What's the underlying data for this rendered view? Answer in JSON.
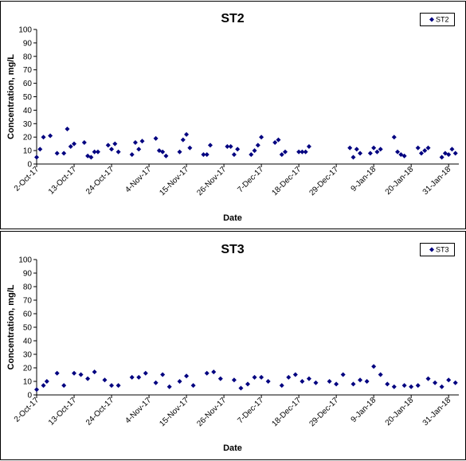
{
  "chart_data": [
    {
      "type": "scatter",
      "title": "ST2",
      "xlabel": "Date",
      "ylabel": "Concentration, mg/L",
      "ylim": [
        0,
        100
      ],
      "ytick_step": 10,
      "xlim": [
        "2017-10-02",
        "2018-02-03"
      ],
      "xticks": [
        "2-Oct-17",
        "13-Oct-17",
        "24-Oct-17",
        "4-Nov-17",
        "15-Nov-17",
        "26-Nov-17",
        "7-Dec-17",
        "18-Dec-17",
        "29-Dec-17",
        "9-Jan-18",
        "20-Jan-18",
        "31-Jan-18"
      ],
      "legend": "top-right",
      "grid": false,
      "marker_color": "#000080",
      "series": [
        {
          "name": "ST2",
          "x": [
            "2017-10-02",
            "2017-10-03",
            "2017-10-04",
            "2017-10-06",
            "2017-10-08",
            "2017-10-10",
            "2017-10-11",
            "2017-10-12",
            "2017-10-13",
            "2017-10-16",
            "2017-10-17",
            "2017-10-18",
            "2017-10-19",
            "2017-10-20",
            "2017-10-23",
            "2017-10-24",
            "2017-10-25",
            "2017-10-26",
            "2017-10-30",
            "2017-10-31",
            "2017-11-01",
            "2017-11-02",
            "2017-11-06",
            "2017-11-07",
            "2017-11-08",
            "2017-11-09",
            "2017-11-13",
            "2017-11-14",
            "2017-11-15",
            "2017-11-16",
            "2017-11-20",
            "2017-11-21",
            "2017-11-22",
            "2017-11-27",
            "2017-11-28",
            "2017-11-29",
            "2017-11-30",
            "2017-12-04",
            "2017-12-05",
            "2017-12-06",
            "2017-12-07",
            "2017-12-11",
            "2017-12-12",
            "2017-12-13",
            "2017-12-14",
            "2017-12-18",
            "2017-12-19",
            "2017-12-20",
            "2017-12-21",
            "2018-01-02",
            "2018-01-03",
            "2018-01-04",
            "2018-01-05",
            "2018-01-08",
            "2018-01-09",
            "2018-01-10",
            "2018-01-11",
            "2018-01-15",
            "2018-01-16",
            "2018-01-17",
            "2018-01-18",
            "2018-01-22",
            "2018-01-23",
            "2018-01-24",
            "2018-01-25",
            "2018-01-29",
            "2018-01-30",
            "2018-01-31",
            "2018-02-01",
            "2018-02-02"
          ],
          "y": [
            5,
            11,
            20,
            21,
            8,
            8,
            26,
            13,
            15,
            16,
            6,
            5,
            9,
            9,
            14,
            11,
            15,
            9,
            7,
            16,
            11,
            17,
            19,
            10,
            9,
            6,
            9,
            18,
            22,
            12,
            7,
            7,
            14,
            13,
            13,
            7,
            11,
            7,
            10,
            14,
            20,
            16,
            18,
            7,
            9,
            9,
            9,
            9,
            13,
            12,
            5,
            11,
            8,
            8,
            12,
            9,
            11,
            20,
            9,
            7,
            6,
            12,
            8,
            10,
            12,
            5,
            8,
            7,
            11,
            8
          ]
        }
      ]
    },
    {
      "type": "scatter",
      "title": "ST3",
      "xlabel": "Date",
      "ylabel": "Concentration, mg/L",
      "ylim": [
        0,
        100
      ],
      "ytick_step": 10,
      "xlim": [
        "2017-10-02",
        "2018-02-03"
      ],
      "xticks": [
        "2-Oct-17",
        "13-Oct-17",
        "24-Oct-17",
        "4-Nov-17",
        "15-Nov-17",
        "26-Nov-17",
        "7-Dec-17",
        "18-Dec-17",
        "29-Dec-17",
        "9-Jan-18",
        "20-Jan-18",
        "31-Jan-18"
      ],
      "legend": "top-right",
      "grid": false,
      "marker_color": "#000080",
      "series": [
        {
          "name": "ST3",
          "x": [
            "2017-10-02",
            "2017-10-04",
            "2017-10-05",
            "2017-10-08",
            "2017-10-10",
            "2017-10-13",
            "2017-10-15",
            "2017-10-17",
            "2017-10-19",
            "2017-10-22",
            "2017-10-24",
            "2017-10-26",
            "2017-10-30",
            "2017-11-01",
            "2017-11-03",
            "2017-11-06",
            "2017-11-08",
            "2017-11-10",
            "2017-11-13",
            "2017-11-15",
            "2017-11-17",
            "2017-11-21",
            "2017-11-23",
            "2017-11-25",
            "2017-11-29",
            "2017-12-01",
            "2017-12-03",
            "2017-12-05",
            "2017-12-07",
            "2017-12-09",
            "2017-12-13",
            "2017-12-15",
            "2017-12-17",
            "2017-12-19",
            "2017-12-21",
            "2017-12-23",
            "2017-12-27",
            "2017-12-29",
            "2017-12-31",
            "2018-01-03",
            "2018-01-05",
            "2018-01-07",
            "2018-01-09",
            "2018-01-11",
            "2018-01-13",
            "2018-01-15",
            "2018-01-18",
            "2018-01-20",
            "2018-01-22",
            "2018-01-25",
            "2018-01-27",
            "2018-01-29",
            "2018-01-31",
            "2018-02-02"
          ],
          "y": [
            4,
            7,
            10,
            16,
            7,
            16,
            15,
            12,
            17,
            11,
            7,
            7,
            13,
            13,
            16,
            9,
            15,
            6,
            10,
            14,
            7,
            16,
            17,
            12,
            11,
            5,
            8,
            13,
            13,
            10,
            7,
            13,
            15,
            10,
            12,
            9,
            10,
            8,
            15,
            8,
            11,
            10,
            21,
            15,
            8,
            6,
            7,
            6,
            7,
            12,
            9,
            6,
            11,
            9
          ]
        }
      ]
    }
  ]
}
